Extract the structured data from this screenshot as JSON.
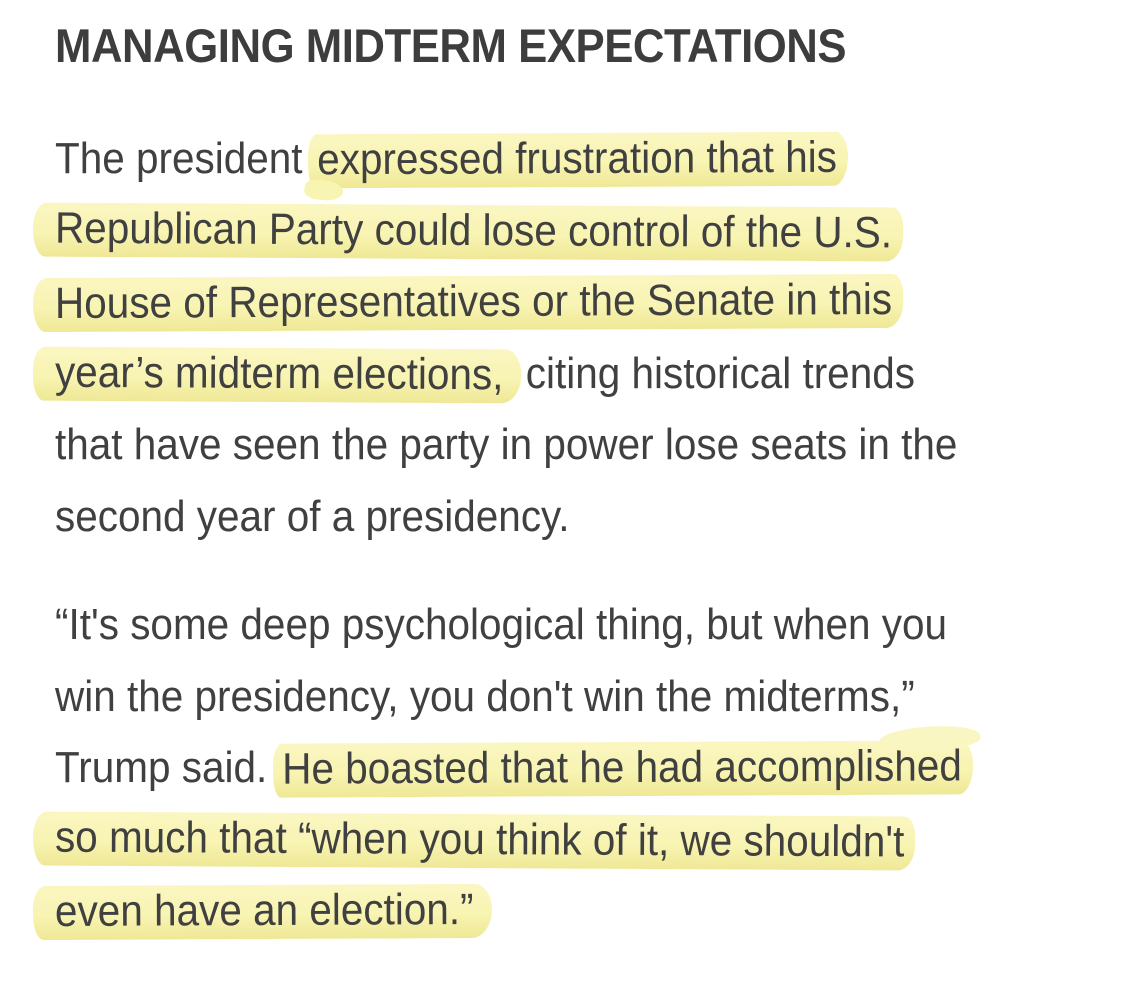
{
  "page": {
    "background": "#ffffff",
    "text_color": "#404040",
    "heading_color": "#3d3d3d",
    "highlight_color": "#f8f4b2"
  },
  "heading": "MANAGING MIDTERM EXPECTATIONS",
  "paragraphs": [
    {
      "lines": [
        [
          {
            "t": "The president ",
            "h": false
          },
          {
            "t": "expressed frustration that his",
            "h": true,
            "v": "blob-start"
          }
        ],
        [
          {
            "t": "Republican Party could lose control of the U.S.",
            "h": true,
            "v": "full"
          }
        ],
        [
          {
            "t": "House of Representatives or the Senate in this",
            "h": true,
            "v": "full"
          }
        ],
        [
          {
            "t": "year’s midterm elections,",
            "h": true,
            "v": "full taper-end"
          },
          {
            "t": " citing historical trends",
            "h": false
          }
        ],
        [
          {
            "t": "that have seen the party in power lose seats in the",
            "h": false
          }
        ],
        [
          {
            "t": "second year of a presidency.",
            "h": false
          }
        ]
      ]
    },
    {
      "lines": [
        [
          {
            "t": "“It's some deep psychological thing, but when you",
            "h": false
          }
        ],
        [
          {
            "t": "win the presidency, you don't win the midterms,”",
            "h": false
          }
        ],
        [
          {
            "t": "Trump said. ",
            "h": false
          },
          {
            "t": "He boasted that he had accomplished",
            "h": true,
            "v": "tail-up"
          }
        ],
        [
          {
            "t": "so much that “when you think of it, we shouldn't",
            "h": true,
            "v": "full"
          }
        ],
        [
          {
            "t": "even have an election.”",
            "h": true,
            "v": "full taper-end"
          }
        ]
      ]
    }
  ]
}
